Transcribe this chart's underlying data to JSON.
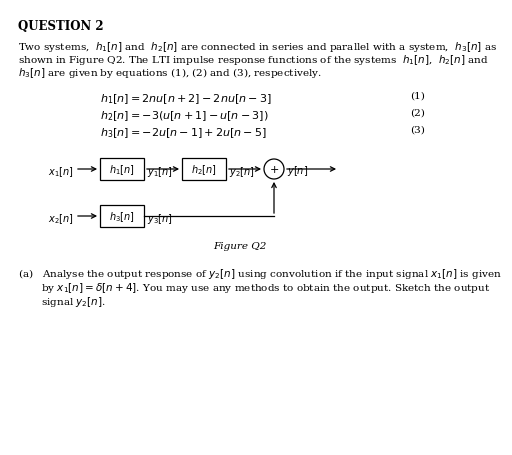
{
  "title": "QUESTION 2",
  "bg_color": "#ffffff",
  "text_color": "#000000",
  "font_size_title": 8.5,
  "font_size_body": 7.5,
  "font_size_eq": 8.0,
  "font_size_diagram": 7.0,
  "para_lines": [
    "Two systems,  $h_1[n]$ and  $h_2[n]$ are connected in series and parallel with a system,  $h_3[n]$ as",
    "shown in Figure Q2. The LTI impulse response functions of the systems  $h_1[n]$,  $h_2[n]$ and",
    "$h_3[n]$ are given by equations (1), (2) and (3), respectively."
  ],
  "eq1": "$h_1[n] = 2nu[n + 2] - 2nu[n - 3]$",
  "eq2": "$h_2[n] = -3(u[n + 1] - u[n - 3])$",
  "eq3": "$h_3[n] = -2u[n - 1] + 2u[n - 5]$",
  "eq_nums": [
    "(1)",
    "(2)",
    "(3)"
  ],
  "fig_caption": "Figure Q2",
  "part_a_lines": [
    "(a)   Analyse the output response of $y_2[n]$ using convolution if the input signal $x_1[n]$ is given",
    "       by $x_1[n] = \\delta[n + 4]$. You may use any methods to obtain the output. Sketch the output",
    "       signal $y_2[n]$."
  ]
}
